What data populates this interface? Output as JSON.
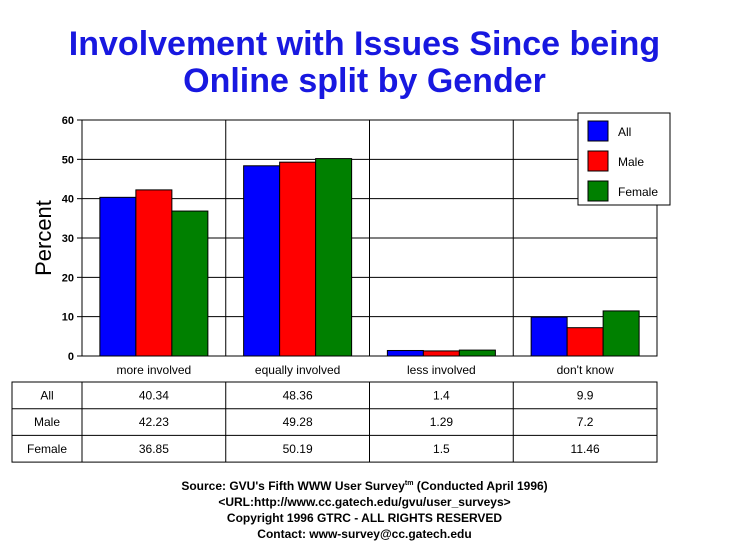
{
  "chart_data": {
    "type": "bar",
    "title_lines": [
      "Involvement with Issues Since being",
      "Online split by Gender"
    ],
    "ylabel": "Percent",
    "xlabel": "",
    "ylim": [
      0,
      60
    ],
    "yticks": [
      0,
      10,
      20,
      30,
      40,
      50,
      60
    ],
    "grid": true,
    "categories": [
      "more involved",
      "equally involved",
      "less involved",
      "don't know"
    ],
    "series": [
      {
        "name": "All",
        "color": "#0000ff",
        "values": [
          40.34,
          48.36,
          1.4,
          9.9
        ]
      },
      {
        "name": "Male",
        "color": "#ff0000",
        "values": [
          42.23,
          49.28,
          1.29,
          7.2
        ]
      },
      {
        "name": "Female",
        "color": "#008000",
        "values": [
          36.85,
          50.19,
          1.5,
          11.46
        ]
      }
    ],
    "legend_position": "top-right",
    "table": {
      "rows": [
        {
          "label": "All",
          "values": [
            "40.34",
            "48.36",
            "1.4",
            "9.9"
          ]
        },
        {
          "label": "Male",
          "values": [
            "42.23",
            "49.28",
            "1.29",
            "7.2"
          ]
        },
        {
          "label": "Female",
          "values": [
            "36.85",
            "50.19",
            "1.5",
            "11.46"
          ]
        }
      ]
    }
  },
  "footer": {
    "source_prefix": "Source: GVU's Fifth WWW User Survey",
    "source_sup": "tm",
    "source_suffix": "  (Conducted April 1996)",
    "url": "<URL:http://www.cc.gatech.edu/gvu/user_surveys>",
    "copyright": "Copyright 1996 GTRC -  ALL RIGHTS RESERVED",
    "contact": "Contact: www-survey@cc.gatech.edu"
  }
}
